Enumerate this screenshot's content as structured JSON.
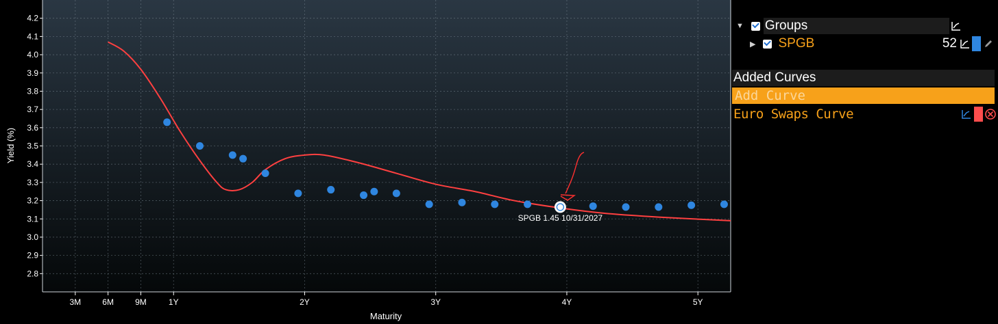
{
  "chart_data": {
    "type": "scatter",
    "xlabel": "Maturity",
    "ylabel": "Yield (%)",
    "xlim": [
      0.0,
      5.25
    ],
    "ylim": [
      2.7,
      4.3
    ],
    "x_ticks": [
      {
        "label": "3M",
        "value": 0.25
      },
      {
        "label": "6M",
        "value": 0.5
      },
      {
        "label": "9M",
        "value": 0.75
      },
      {
        "label": "1Y",
        "value": 1.0
      },
      {
        "label": "2Y",
        "value": 2.0
      },
      {
        "label": "3Y",
        "value": 3.0
      },
      {
        "label": "4Y",
        "value": 4.0
      },
      {
        "label": "5Y",
        "value": 5.0
      }
    ],
    "y_ticks": [
      "2.8",
      "2.9",
      "3.0",
      "3.1",
      "3.2",
      "3.3",
      "3.4",
      "3.5",
      "3.6",
      "3.7",
      "3.8",
      "3.9",
      "4.0",
      "4.1",
      "4.2"
    ],
    "series": [
      {
        "name": "SPGB",
        "kind": "scatter",
        "color": "#2f86e0",
        "points": [
          [
            0.95,
            3.63
          ],
          [
            1.2,
            3.5
          ],
          [
            1.45,
            3.45
          ],
          [
            1.53,
            3.43
          ],
          [
            1.7,
            3.35
          ],
          [
            1.95,
            3.24
          ],
          [
            2.2,
            3.26
          ],
          [
            2.45,
            3.23
          ],
          [
            2.53,
            3.25
          ],
          [
            2.7,
            3.24
          ],
          [
            2.95,
            3.18
          ],
          [
            3.2,
            3.19
          ],
          [
            3.45,
            3.18
          ],
          [
            3.7,
            3.18
          ],
          [
            3.95,
            3.165
          ],
          [
            4.2,
            3.17
          ],
          [
            4.45,
            3.165
          ],
          [
            4.7,
            3.165
          ],
          [
            4.95,
            3.175
          ],
          [
            5.2,
            3.18
          ]
        ]
      },
      {
        "name": "Euro Swaps Curve",
        "kind": "line",
        "color": "#ff4040",
        "points": [
          [
            0.5,
            4.07
          ],
          [
            0.62,
            4.02
          ],
          [
            0.75,
            3.92
          ],
          [
            0.9,
            3.76
          ],
          [
            1.05,
            3.58
          ],
          [
            1.2,
            3.42
          ],
          [
            1.33,
            3.3
          ],
          [
            1.4,
            3.26
          ],
          [
            1.5,
            3.26
          ],
          [
            1.6,
            3.3
          ],
          [
            1.7,
            3.37
          ],
          [
            1.85,
            3.43
          ],
          [
            2.0,
            3.45
          ],
          [
            2.15,
            3.45
          ],
          [
            2.4,
            3.41
          ],
          [
            2.7,
            3.35
          ],
          [
            3.0,
            3.29
          ],
          [
            3.3,
            3.25
          ],
          [
            3.6,
            3.2
          ],
          [
            3.95,
            3.16
          ],
          [
            4.3,
            3.13
          ],
          [
            4.7,
            3.11
          ],
          [
            5.25,
            3.09
          ]
        ]
      }
    ],
    "highlight": {
      "x": 3.95,
      "y": 3.165,
      "label": "SPGB 1.45 10/31/2027"
    }
  },
  "panel": {
    "groups_label": "Groups",
    "spgb_label": "SPGB",
    "spgb_count": "52",
    "added_curves_title": "Added Curves",
    "add_curve_placeholder": "Add Curve",
    "curve_name": "Euro Swaps Curve",
    "colors": {
      "spgb": "#2f86e0",
      "curve": "#ff4d4d",
      "accent": "#f7a11a"
    }
  }
}
